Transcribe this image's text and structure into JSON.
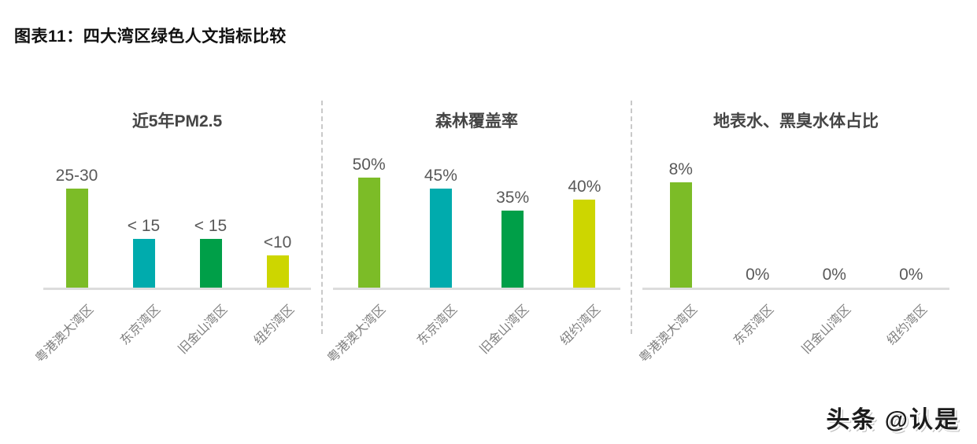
{
  "page": {
    "title": "图表11：四大湾区绿色人文指标比较",
    "watermark": "头条 @认是"
  },
  "colors": {
    "bar_palette": [
      "#7CBC27",
      "#00ABAD",
      "#009F48",
      "#CDD600"
    ],
    "panel_title_text": "#454545",
    "value_label_text": "#595959",
    "category_label_text": "#7f7f7f",
    "axis_line": "#dcdcdc",
    "divider_dashed": "#c9c9c9"
  },
  "chart_data": [
    {
      "type": "bar",
      "title": "近5年PM2.5",
      "categories": [
        "粤港澳大湾区",
        "东京湾区",
        "旧金山湾区",
        "纽约湾区"
      ],
      "values": [
        27.5,
        13.5,
        13.5,
        9
      ],
      "value_labels": [
        "25-30",
        "< 15",
        "< 15",
        "<10"
      ],
      "bar_colors": [
        "#7CBC27",
        "#00ABAD",
        "#009F48",
        "#CDD600"
      ],
      "xlabel": "",
      "ylabel": "",
      "grid": false,
      "legend": "none",
      "note": "values are numeric estimates of the labeled ranges"
    },
    {
      "type": "bar",
      "title": "森林覆盖率",
      "categories": [
        "粤港澳大湾区",
        "东京湾区",
        "旧金山湾区",
        "纽约湾区"
      ],
      "values": [
        50,
        45,
        35,
        40
      ],
      "value_labels": [
        "50%",
        "45%",
        "35%",
        "40%"
      ],
      "bar_colors": [
        "#7CBC27",
        "#00ABAD",
        "#009F48",
        "#CDD600"
      ],
      "xlabel": "",
      "ylabel": "",
      "grid": false,
      "legend": "none"
    },
    {
      "type": "bar",
      "title": "地表水、黑臭水体占比",
      "categories": [
        "粤港澳大湾区",
        "东京湾区",
        "旧金山湾区",
        "纽约湾区"
      ],
      "values": [
        8,
        0,
        0,
        0
      ],
      "value_labels": [
        "8%",
        "0%",
        "0%",
        "0%"
      ],
      "bar_colors": [
        "#7CBC27",
        "#00ABAD",
        "#009F48",
        "#CDD600"
      ],
      "xlabel": "",
      "ylabel": "",
      "grid": false,
      "legend": "none"
    }
  ]
}
